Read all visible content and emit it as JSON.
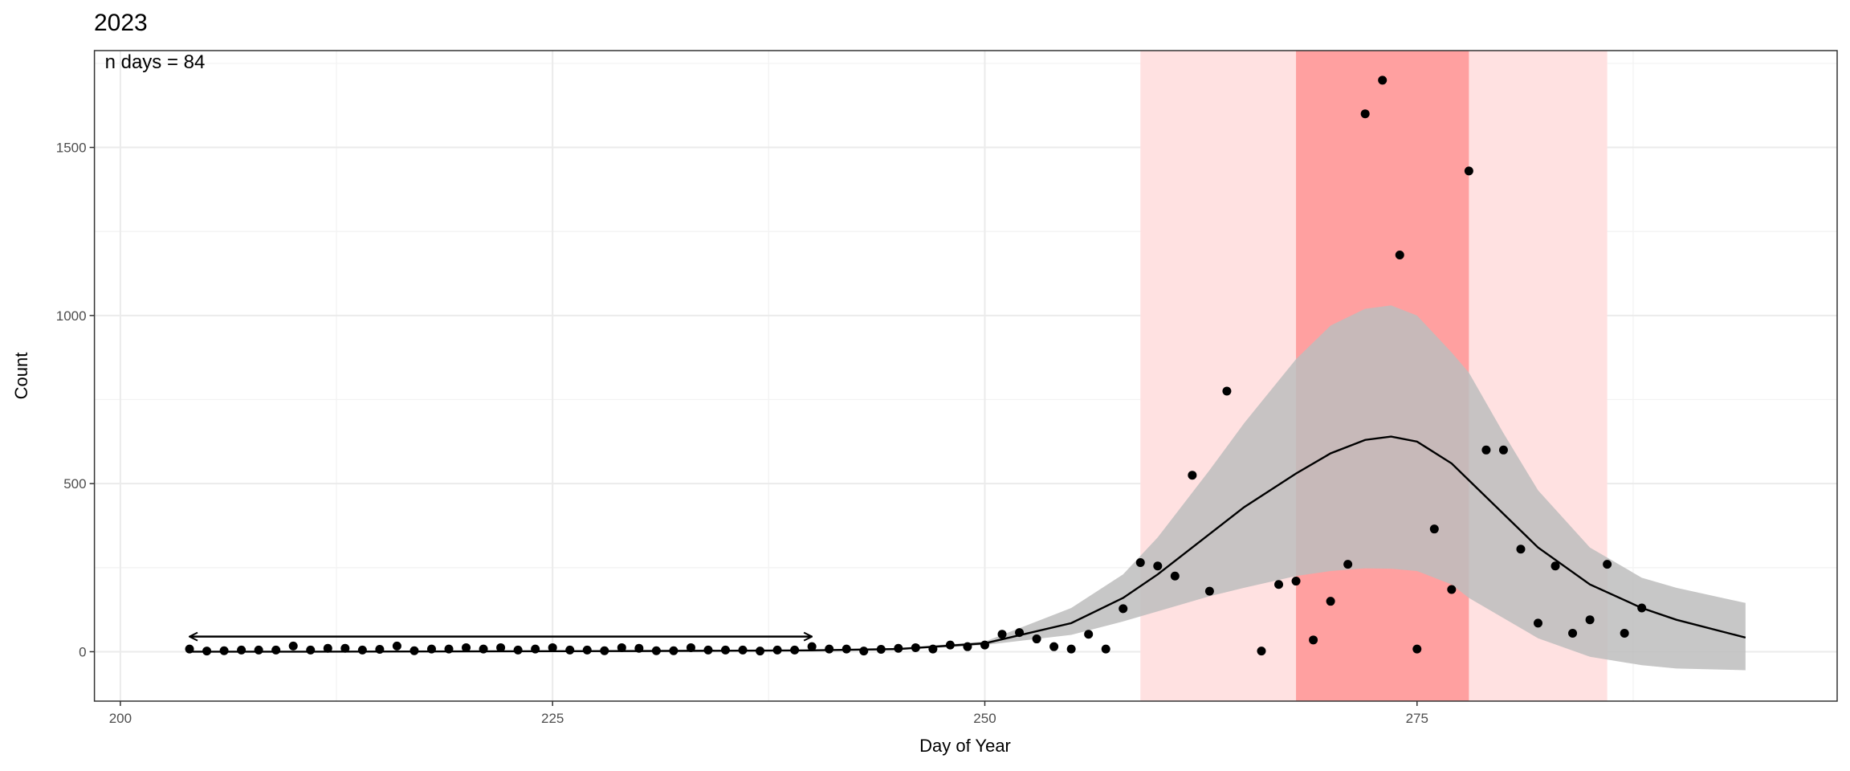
{
  "chart_data": {
    "type": "scatter",
    "title": "2023",
    "xlabel": "Day of Year",
    "ylabel": "Count",
    "annotation": "n days = 84",
    "x": [
      204,
      205,
      206,
      207,
      208,
      209,
      210,
      211,
      212,
      213,
      214,
      215,
      216,
      217,
      218,
      219,
      220,
      221,
      222,
      223,
      224,
      225,
      226,
      227,
      228,
      229,
      230,
      231,
      232,
      233,
      234,
      235,
      236,
      237,
      238,
      239,
      240,
      241,
      242,
      243,
      244,
      245,
      246,
      247,
      248,
      249,
      250,
      251,
      252,
      253,
      254,
      255,
      256,
      257,
      258,
      259,
      260,
      261,
      262,
      263,
      264,
      266,
      267,
      268,
      269,
      270,
      271,
      272,
      273,
      274,
      275,
      276,
      277,
      278,
      279,
      280,
      281,
      282,
      283,
      284,
      285,
      286,
      287,
      288
    ],
    "values": [
      8,
      2,
      3,
      5,
      5,
      5,
      17,
      5,
      10,
      10,
      5,
      7,
      17,
      3,
      8,
      8,
      12,
      8,
      12,
      5,
      8,
      12,
      5,
      5,
      3,
      12,
      10,
      3,
      3,
      12,
      5,
      5,
      5,
      2,
      5,
      5,
      15,
      8,
      8,
      2,
      7,
      10,
      12,
      8,
      20,
      15,
      20,
      52,
      57,
      38,
      15,
      8,
      52,
      8,
      128,
      265,
      255,
      225,
      525,
      180,
      775,
      2,
      200,
      210,
      35,
      150,
      260,
      1600,
      1700,
      1180,
      8,
      365,
      185,
      1430,
      600,
      600,
      305,
      85,
      255,
      55,
      95,
      260,
      55,
      130
    ],
    "point_color": "#000000",
    "fit": {
      "x": [
        204,
        210,
        220,
        230,
        240,
        245,
        250,
        255,
        258,
        260,
        263,
        265,
        268,
        270,
        272,
        273.5,
        275,
        277,
        278,
        280,
        282,
        285,
        288,
        290,
        294
      ],
      "values": [
        0,
        0,
        1,
        2,
        4,
        8,
        25,
        85,
        160,
        230,
        350,
        430,
        530,
        590,
        630,
        640,
        625,
        560,
        510,
        410,
        310,
        200,
        130,
        95,
        42
      ],
      "lower": [
        0,
        0,
        0,
        1,
        2,
        5,
        20,
        50,
        90,
        120,
        165,
        190,
        225,
        240,
        248,
        247,
        240,
        200,
        160,
        100,
        40,
        -15,
        -40,
        -50,
        -55
      ],
      "upper": [
        1,
        1,
        2,
        3,
        6,
        11,
        30,
        130,
        230,
        340,
        540,
        680,
        870,
        970,
        1020,
        1030,
        1000,
        890,
        830,
        650,
        480,
        310,
        220,
        190,
        145
      ],
      "color": "#000000",
      "band_color": "#bdbdbd"
    },
    "regions": [
      {
        "x": [
          259,
          286
        ],
        "color": "#ffe1e1"
      },
      {
        "x": [
          268,
          278
        ],
        "color": "#ffa0a0"
      }
    ],
    "arrow": {
      "x": [
        204,
        240
      ],
      "y": 45,
      "color": "#000000"
    },
    "xlim": [
      198.5,
      299.3
    ],
    "ylim": [
      -147,
      1788
    ],
    "xticks": [
      200,
      225,
      250,
      275
    ],
    "yticks": [
      0,
      500,
      1000,
      1500
    ],
    "grid": true
  }
}
